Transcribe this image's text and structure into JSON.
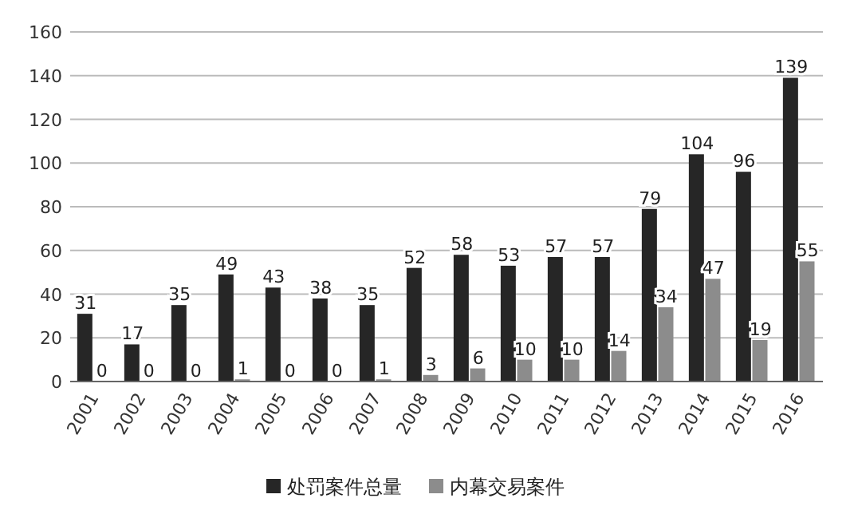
{
  "chart_data": {
    "type": "bar",
    "categories": [
      "2001",
      "2002",
      "2003",
      "2004",
      "2005",
      "2006",
      "2007",
      "2008",
      "2009",
      "2010",
      "2011",
      "2012",
      "2013",
      "2014",
      "2015",
      "2016"
    ],
    "series": [
      {
        "name": "处罚案件总量",
        "color": "#262626",
        "values": [
          31,
          17,
          35,
          49,
          43,
          38,
          35,
          52,
          58,
          53,
          57,
          57,
          79,
          104,
          96,
          139
        ]
      },
      {
        "name": "内幕交易案件",
        "color": "#8c8c8c",
        "values": [
          0,
          0,
          0,
          1,
          0,
          0,
          1,
          3,
          6,
          10,
          10,
          14,
          34,
          47,
          19,
          55
        ]
      }
    ],
    "ylim": [
      0,
      160
    ],
    "yticks": [
      0,
      20,
      40,
      60,
      80,
      100,
      120,
      140,
      160
    ],
    "grid": "y",
    "legend": "bottom",
    "data_labels": true
  }
}
